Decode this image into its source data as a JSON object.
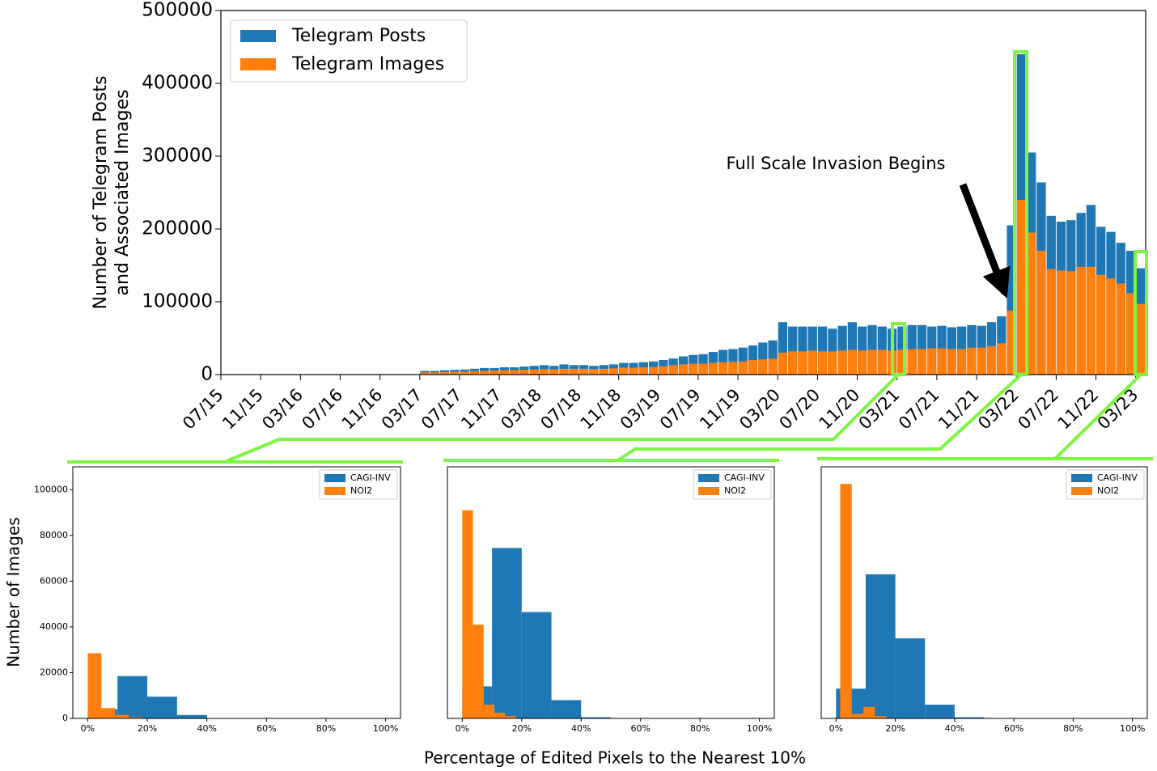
{
  "chart_data": [
    {
      "type": "bar",
      "ylabel": [
        "Number of Telegram Posts",
        "and Associated Images"
      ],
      "annotation": "Full Scale Invasion Begins",
      "legend": "upper left",
      "categories": [
        "07/15",
        null,
        null,
        null,
        "11/15",
        null,
        null,
        null,
        "03/16",
        null,
        null,
        null,
        "07/16",
        null,
        null,
        null,
        "11/16",
        null,
        null,
        null,
        "03/17",
        null,
        null,
        null,
        "07/17",
        null,
        null,
        null,
        "11/17",
        null,
        null,
        null,
        "03/18",
        null,
        null,
        null,
        "07/18",
        null,
        null,
        null,
        "11/18",
        null,
        null,
        null,
        "03/19",
        null,
        null,
        null,
        "07/19",
        null,
        null,
        null,
        "11/19",
        null,
        null,
        null,
        "03/20",
        null,
        null,
        null,
        "07/20",
        null,
        null,
        null,
        "11/20",
        null,
        null,
        null,
        "03/21",
        null,
        null,
        null,
        "07/21",
        null,
        null,
        null,
        "11/21",
        null,
        null,
        null,
        "03/22",
        null,
        null,
        null,
        "07/22",
        null,
        null,
        null,
        "11/22",
        null,
        null,
        null,
        "03/23"
      ],
      "series": [
        {
          "name": "Telegram Posts",
          "color": "#1f77b4",
          "values": [
            0,
            0,
            0,
            0,
            0,
            0,
            0,
            0,
            0,
            0,
            0,
            0,
            0,
            0,
            0,
            0,
            0,
            0,
            0,
            0,
            5000,
            5000,
            6000,
            6500,
            7000,
            8000,
            9000,
            9000,
            10000,
            10000,
            11000,
            12000,
            13000,
            12000,
            14000,
            13000,
            13000,
            12000,
            13000,
            14000,
            16000,
            16000,
            17000,
            18000,
            20000,
            22000,
            25000,
            27000,
            28000,
            31000,
            34000,
            35000,
            37000,
            40000,
            44000,
            47000,
            72000,
            66000,
            66000,
            66000,
            66000,
            63000,
            67000,
            72000,
            66000,
            68000,
            66000,
            63000,
            66000,
            68000,
            68000,
            66000,
            67000,
            65000,
            66000,
            68000,
            67000,
            72000,
            80000,
            205000,
            440000,
            305000,
            264000,
            218000,
            210000,
            212000,
            222000,
            233000,
            203000,
            196000,
            181000,
            170000,
            146000
          ]
        },
        {
          "name": "Telegram Images",
          "color": "#ff7f0e",
          "values": [
            0,
            0,
            0,
            0,
            0,
            0,
            0,
            0,
            0,
            0,
            0,
            0,
            0,
            0,
            0,
            0,
            0,
            0,
            0,
            0,
            3000,
            3000,
            3500,
            4000,
            4000,
            5000,
            5000,
            5500,
            6000,
            6000,
            6500,
            7000,
            7500,
            7000,
            8000,
            8000,
            8000,
            7500,
            8000,
            8500,
            9500,
            9500,
            10000,
            10500,
            11500,
            13000,
            14000,
            15000,
            15000,
            16000,
            17000,
            17500,
            18000,
            20000,
            21000,
            22000,
            30000,
            32000,
            32000,
            33000,
            32000,
            32000,
            33000,
            34000,
            33000,
            34000,
            34000,
            33000,
            34000,
            35000,
            35000,
            36000,
            36000,
            35000,
            35000,
            37000,
            37000,
            39000,
            43000,
            88000,
            240000,
            195000,
            170000,
            145000,
            143000,
            142000,
            148000,
            148000,
            137000,
            132000,
            125000,
            112000,
            97000
          ]
        }
      ],
      "ylim": [
        0,
        500000
      ],
      "yticks": [
        0,
        100000,
        200000,
        300000,
        400000,
        500000
      ]
    },
    {
      "type": "histogram",
      "legend": "upper right",
      "ylabel": "Number of Images",
      "series": [
        {
          "name": "CAGI-INV",
          "color": "#1f77b4",
          "bins": [
            0,
            10,
            20,
            30,
            40,
            50,
            60,
            70,
            80,
            90,
            100
          ],
          "values": [
            4000,
            18500,
            9500,
            1500,
            0,
            0,
            0,
            0,
            0,
            0
          ]
        },
        {
          "name": "NOI2",
          "color": "#ff7f0e",
          "bins": [
            0,
            4.6,
            9.2,
            13.8,
            18.4
          ],
          "values": [
            28500,
            4500,
            1500,
            500
          ]
        }
      ],
      "xlim": [
        -5,
        105
      ],
      "ylim": [
        0,
        110000
      ],
      "xticks": [
        {
          "value": 0,
          "label": "0%"
        },
        {
          "value": 20,
          "label": "20%"
        },
        {
          "value": 40,
          "label": "40%"
        },
        {
          "value": 60,
          "label": "60%"
        },
        {
          "value": 80,
          "label": "80%"
        },
        {
          "value": 100,
          "label": "100%"
        }
      ],
      "yticks": [
        0,
        20000,
        40000,
        60000,
        80000,
        100000
      ]
    },
    {
      "type": "histogram",
      "legend": "upper right",
      "xlabel": "Percentage of Edited Pixels to the Nearest 10%",
      "series": [
        {
          "name": "CAGI-INV",
          "color": "#1f77b4",
          "bins": [
            0,
            10,
            20,
            30,
            40,
            50,
            60,
            70,
            80,
            90,
            100
          ],
          "values": [
            14000,
            74500,
            46500,
            8000,
            500,
            0,
            0,
            0,
            0,
            0
          ]
        },
        {
          "name": "NOI2",
          "color": "#ff7f0e",
          "bins": [
            0,
            3.6,
            7.2,
            10.8,
            14.4,
            18
          ],
          "values": [
            91000,
            41000,
            6000,
            2500,
            1000
          ]
        }
      ],
      "xlim": [
        -5,
        105
      ],
      "ylim": [
        0,
        110000
      ],
      "xticks": [
        {
          "value": 0,
          "label": "0%"
        },
        {
          "value": 20,
          "label": "20%"
        },
        {
          "value": 40,
          "label": "40%"
        },
        {
          "value": 60,
          "label": "60%"
        },
        {
          "value": 80,
          "label": "80%"
        },
        {
          "value": 100,
          "label": "100%"
        }
      ]
    },
    {
      "type": "histogram",
      "legend": "upper right",
      "series": [
        {
          "name": "CAGI-INV",
          "color": "#1f77b4",
          "bins": [
            0,
            10,
            20,
            30,
            40,
            50,
            60,
            70,
            80,
            90,
            100
          ],
          "values": [
            13000,
            63000,
            35000,
            6000,
            500,
            0,
            0,
            0,
            0,
            0
          ]
        },
        {
          "name": "NOI2",
          "color": "#ff7f0e",
          "bins": [
            1.4,
            5.3,
            9.2,
            13.1,
            17
          ],
          "values": [
            102500,
            2000,
            5000,
            1000
          ]
        }
      ],
      "xlim": [
        -5,
        105
      ],
      "ylim": [
        0,
        110000
      ],
      "xticks": [
        {
          "value": 0,
          "label": "0%"
        },
        {
          "value": 20,
          "label": "20%"
        },
        {
          "value": 40,
          "label": "40%"
        },
        {
          "value": 60,
          "label": "60%"
        },
        {
          "value": 80,
          "label": "80%"
        },
        {
          "value": 100,
          "label": "100%"
        }
      ]
    }
  ]
}
